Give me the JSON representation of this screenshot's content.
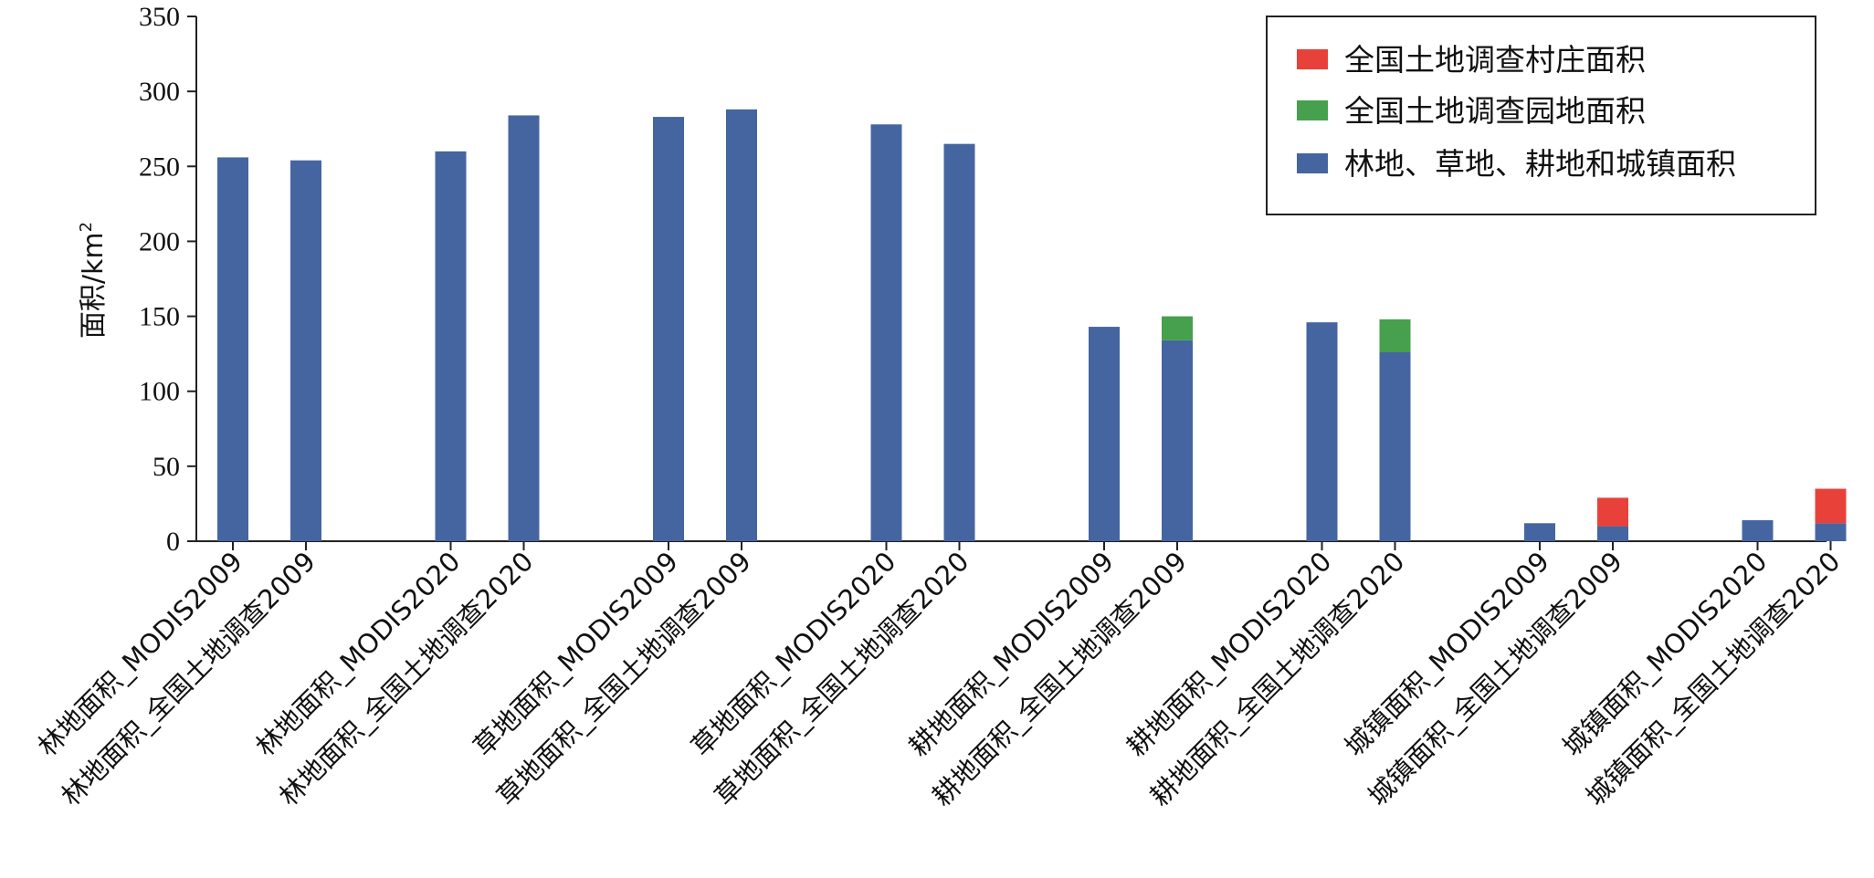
{
  "chart_data": {
    "type": "bar",
    "stacked": true,
    "ylabel": "面积/km",
    "ylabel_superscript": "2",
    "ylim": [
      0,
      350
    ],
    "yticks": [
      "0",
      "50",
      "100",
      "150",
      "200",
      "250",
      "300",
      "350"
    ],
    "grid": false,
    "legend_position": "top-right",
    "categories": [
      "林地面积_MODIS2009",
      "林地面积_全国土地调查2009",
      "林地面积_MODIS2020",
      "林地面积_全国土地调查2020",
      "草地面积_MODIS2009",
      "草地面积_全国土地调查2009",
      "草地面积_MODIS2020",
      "草地面积_全国土地调查2020",
      "耕地面积_MODIS2009",
      "耕地面积_全国土地调查2009",
      "耕地面积_MODIS2020",
      "耕地面积_全国土地调查2020",
      "城镇面积_MODIS2009",
      "城镇面积_全国土地调查2009",
      "城镇面积_MODIS2020",
      "城镇面积_全国土地调查2020"
    ],
    "series": [
      {
        "name": "林地、草地、耕地和城镇面积",
        "color": "#4565a1",
        "values": [
          256,
          254,
          260,
          284,
          283,
          288,
          278,
          265,
          143,
          134,
          146,
          126,
          12,
          10,
          14,
          12
        ]
      },
      {
        "name": "全国土地调查园地面积",
        "color": "#46a04d",
        "values": [
          0,
          0,
          0,
          0,
          0,
          0,
          0,
          0,
          0,
          16,
          0,
          22,
          0,
          0,
          0,
          0
        ]
      },
      {
        "name": "全国土地调查村庄面积",
        "color": "#e8413a",
        "values": [
          0,
          0,
          0,
          0,
          0,
          0,
          0,
          0,
          0,
          0,
          0,
          0,
          0,
          19,
          0,
          23
        ]
      }
    ],
    "legend_order": [
      "全国土地调查村庄面积",
      "全国土地调查园地面积",
      "林地、草地、耕地和城镇面积"
    ]
  }
}
